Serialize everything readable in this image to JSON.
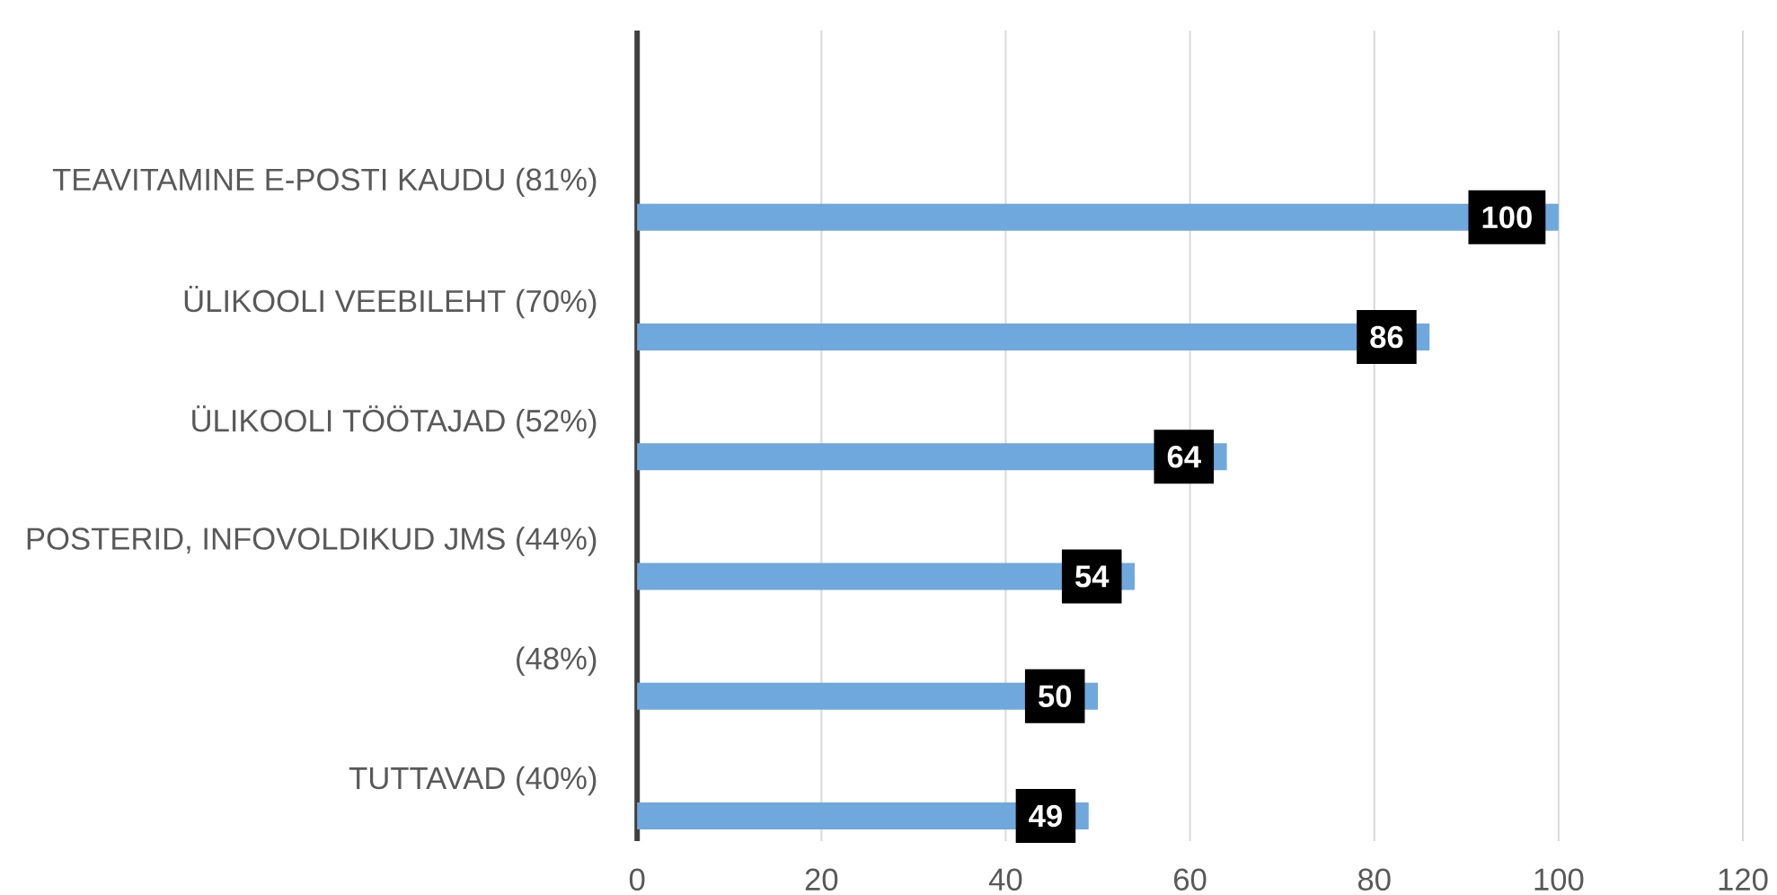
{
  "chart_data": {
    "type": "bar",
    "orientation": "horizontal",
    "categories": [
      "TEAVITAMINE E-POSTI KAUDU (81%)",
      "ÜLIKOOLI VEEBILEHT (70%)",
      "ÜLIKOOLI TÖÖTAJAD (52%)",
      "POSTERID, INFOVOLDIKUD JMS (44%)",
      "(48%)",
      "TUTTAVAD (40%)"
    ],
    "values": [
      100,
      86,
      64,
      54,
      50,
      49
    ],
    "color": "#6fa8dc",
    "xlim": [
      0,
      120
    ],
    "xticks": [
      0,
      20,
      40,
      60,
      80,
      100,
      120
    ],
    "grid": "x",
    "data_labels": true
  }
}
